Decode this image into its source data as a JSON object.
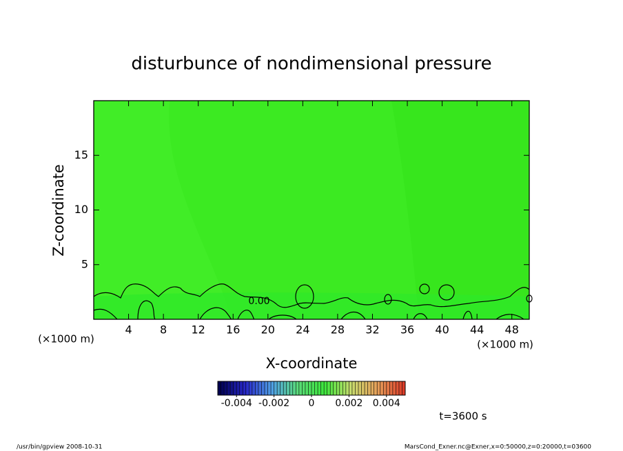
{
  "chart_data": {
    "type": "contour",
    "title": "disturbunce of nondimensional pressure",
    "xlabel": "X-coordinate",
    "ylabel": "Z-coordinate",
    "xunits": "(×1000 m)",
    "yunits": "(×1000 m)",
    "xlim": [
      0,
      50
    ],
    "ylim": [
      0,
      20
    ],
    "xticks": [
      4,
      8,
      12,
      16,
      20,
      24,
      28,
      32,
      36,
      40,
      44,
      48
    ],
    "yticks": [
      5,
      10,
      15
    ],
    "fill_color": "#3cea22",
    "contour_color": "#000000",
    "contour_label": "0.00",
    "colorbar": {
      "lim": [
        -0.005,
        0.005
      ],
      "ticks": [
        -0.004,
        -0.002,
        0,
        0.002,
        0.004
      ]
    },
    "time_label": "t=3600 s",
    "footer_left": "/usr/bin/gpview   2008-10-31",
    "footer_right": "MarsCond_Exner.nc@Exner,x=0:50000,z=0:20000,t=03600"
  }
}
